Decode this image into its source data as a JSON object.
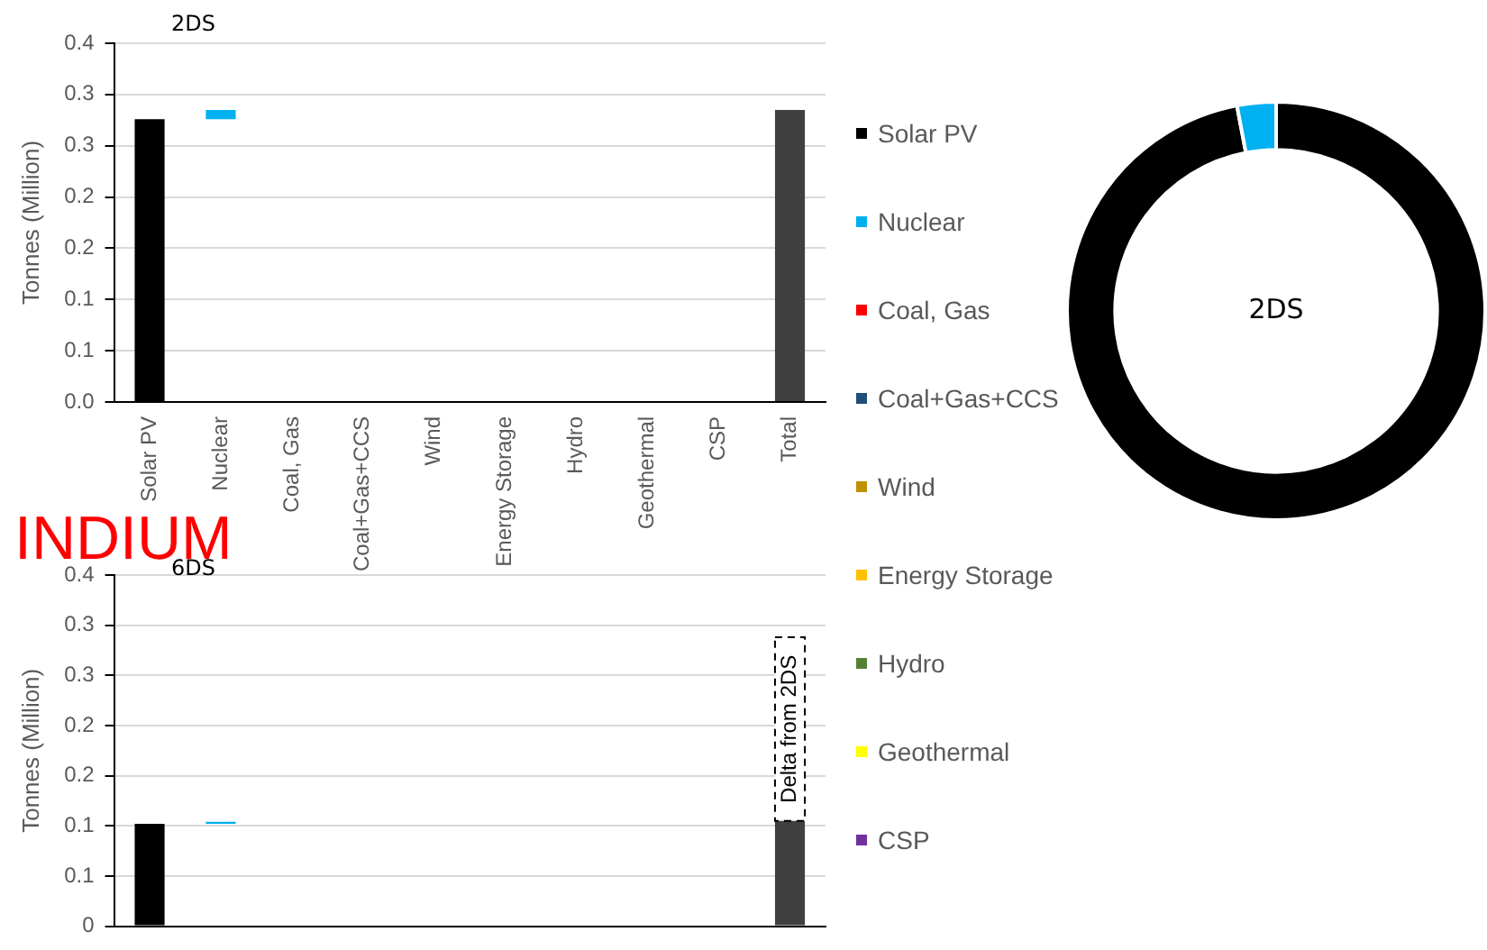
{
  "chart_data": [
    {
      "type": "bar",
      "title": "2DS",
      "ylabel": "Tonnes (Million)",
      "categories": [
        "Solar PV",
        "Nuclear",
        "Coal, Gas",
        "Coal+Gas+CCS",
        "Wind",
        "Energy Storage",
        "Hydro",
        "Geothermal",
        "CSP",
        "Total"
      ],
      "values": [
        0.276,
        0.009,
        null,
        null,
        null,
        null,
        null,
        null,
        null,
        0.285
      ],
      "base": [
        0,
        0.276,
        null,
        null,
        null,
        null,
        null,
        null,
        null,
        0
      ],
      "colors": [
        "#000000",
        "#00b0f0",
        "#ff0000",
        "#1f4e79",
        "#bf9000",
        "#ffc000",
        "#548235",
        "#ffff00",
        "#7030a0",
        "#404040"
      ],
      "ylim": [
        0,
        0.35
      ],
      "yticks": [
        {
          "value": 0,
          "label": "0.0"
        },
        {
          "value": 0.05,
          "label": "0.1"
        },
        {
          "value": 0.1,
          "label": "0.1"
        },
        {
          "value": 0.15,
          "label": "0.2"
        },
        {
          "value": 0.2,
          "label": "0.2"
        },
        {
          "value": 0.25,
          "label": "0.3"
        },
        {
          "value": 0.3,
          "label": "0.3"
        },
        {
          "value": 0.35,
          "label": "0.4"
        }
      ],
      "grid": "y",
      "legend": false,
      "annotations": [
        "INDIUM"
      ]
    },
    {
      "type": "bar",
      "title": "6DS",
      "ylabel": "Tonnes (Million)",
      "categories": [
        null,
        null,
        null,
        null,
        null,
        null,
        null,
        null,
        null,
        null
      ],
      "series": [
        {
          "values": [
            0.102,
            0.002,
            null,
            null,
            null,
            null,
            null,
            null,
            null,
            0.105
          ],
          "base": [
            0,
            0.102,
            null,
            null,
            null,
            null,
            null,
            null,
            null,
            0
          ],
          "colors": [
            "#000000",
            "#00b0f0",
            "#ff0000",
            "#1f4e79",
            "#bf9000",
            "#ffc000",
            "#548235",
            "#ffff00",
            "#7030a0",
            "#404040"
          ]
        },
        {
          "values": [
            null,
            null,
            null,
            null,
            null,
            null,
            null,
            null,
            null,
            0.183
          ],
          "base": [
            null,
            null,
            null,
            null,
            null,
            null,
            null,
            null,
            null,
            0.105
          ],
          "color": "#ffffff",
          "line_style": "dashed"
        }
      ],
      "ylim": [
        0,
        0.35
      ],
      "yticks": [
        {
          "value": 0,
          "label": "0"
        },
        {
          "value": 0.05,
          "label": "0.1"
        },
        {
          "value": 0.1,
          "label": "0.1"
        },
        {
          "value": 0.15,
          "label": "0.2"
        },
        {
          "value": 0.2,
          "label": "0.2"
        },
        {
          "value": 0.25,
          "label": "0.3"
        },
        {
          "value": 0.3,
          "label": "0.3"
        },
        {
          "value": 0.35,
          "label": "0.4"
        }
      ],
      "grid": "y",
      "legend": false,
      "tick_labels": "y",
      "annotations": [
        "Delta from 2DS"
      ]
    },
    {
      "type": "donut",
      "title": "2DS",
      "categories": [
        "Solar PV",
        "Nuclear",
        "Coal, Gas",
        "Coal+Gas+CCS",
        "Wind",
        "Energy Storage",
        "Hydro",
        "Geothermal",
        "CSP"
      ],
      "values": [
        97,
        3,
        0,
        0,
        0,
        0,
        0,
        0,
        0
      ],
      "colors": [
        "#000000",
        "#00b0f0",
        "#ff0000",
        "#1f4e79",
        "#bf9000",
        "#ffc000",
        "#548235",
        "#ffff00",
        "#7030a0"
      ],
      "legend": "left"
    }
  ]
}
